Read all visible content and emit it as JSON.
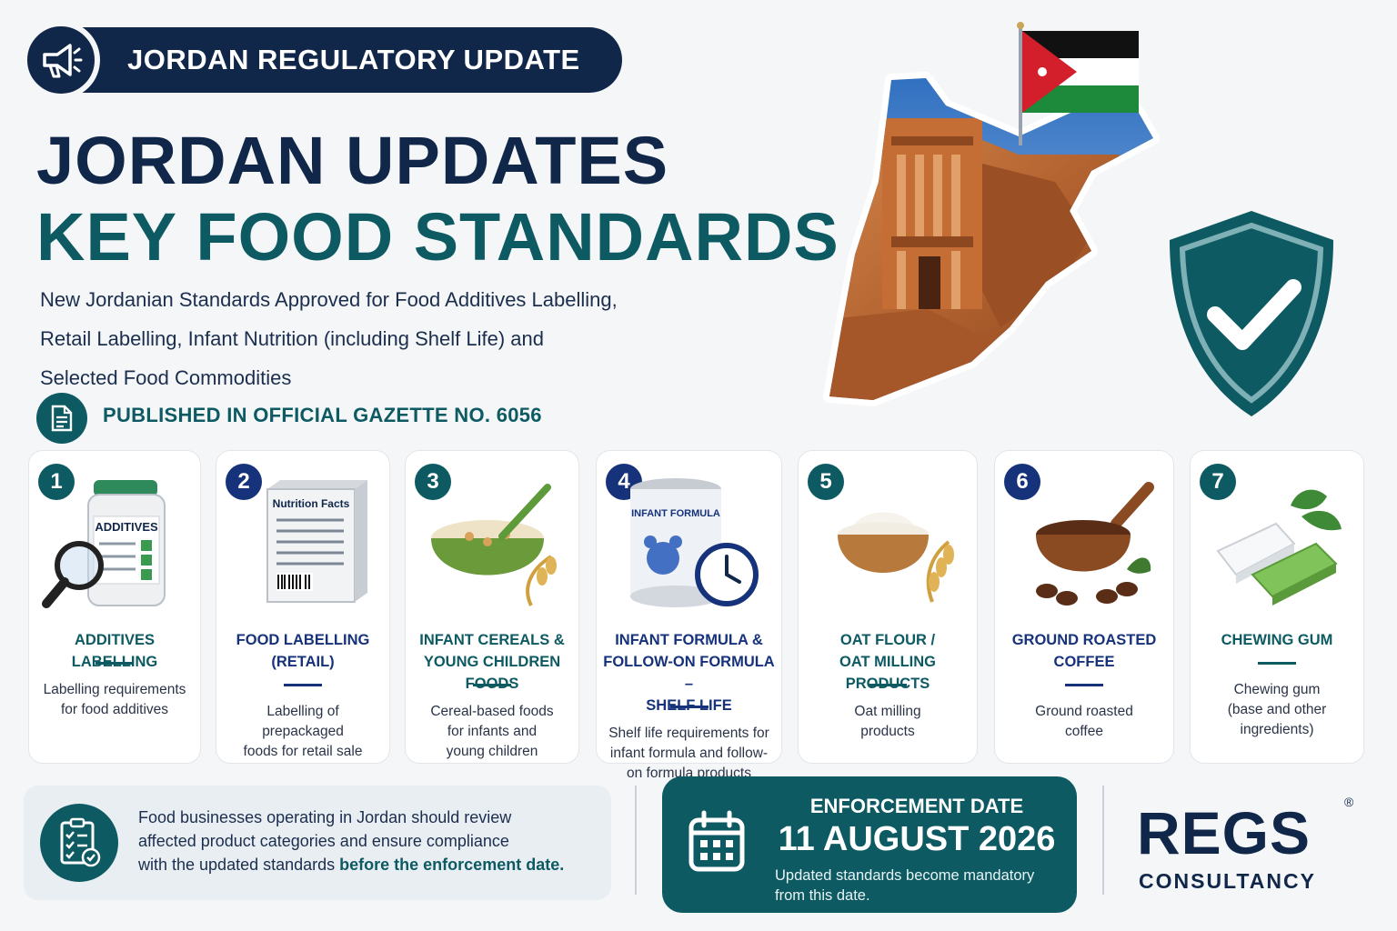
{
  "header": {
    "pill_text": "JORDAN REGULATORY UPDATE",
    "pill_icon": "megaphone-icon",
    "title_line1": "JORDAN UPDATES",
    "title_line2": "KEY FOOD STANDARDS",
    "subtitle_line1": "New Jordanian Standards Approved for Food Additives Labelling,",
    "subtitle_line2": "Retail Labelling, Infant Nutrition (including Shelf Life) and",
    "subtitle_line3": "Selected Food Commodities",
    "gazette_text": "PUBLISHED IN OFFICIAL GAZETTE NO. 6056",
    "gazette_icon": "document-icon"
  },
  "colors": {
    "navy": "#10274a",
    "teal": "#0d5a63",
    "blue": "#16327a",
    "background": "#f4f6f8"
  },
  "cards": [
    {
      "number": "1",
      "title_lines": [
        "ADDITIVES LABELLING"
      ],
      "desc_lines": [
        "Labelling requirements",
        "for food additives"
      ],
      "illustration": "additives-jar-magnifier-icon",
      "accent": "teal"
    },
    {
      "number": "2",
      "title_lines": [
        "FOOD LABELLING",
        "(RETAIL)"
      ],
      "desc_lines": [
        "Labelling of prepackaged",
        "foods for retail sale"
      ],
      "illustration": "nutrition-facts-box-icon",
      "illus_label": "Nutrition Facts",
      "accent": "navy"
    },
    {
      "number": "3",
      "title_lines": [
        "INFANT CEREALS &",
        "YOUNG CHILDREN FOODS"
      ],
      "desc_lines": [
        "Cereal-based foods",
        "for infants and",
        "young children"
      ],
      "illustration": "cereal-bowl-icon",
      "accent": "teal"
    },
    {
      "number": "4",
      "title_lines": [
        "INFANT FORMULA &",
        "FOLLOW-ON FORMULA –",
        "SHELF LIFE"
      ],
      "desc_lines": [
        "Shelf life requirements for",
        "infant formula and follow-",
        "on formula products"
      ],
      "illustration": "formula-can-clock-icon",
      "illus_label": "INFANT FORMULA",
      "accent": "navy"
    },
    {
      "number": "5",
      "title_lines": [
        "OAT FLOUR /",
        "OAT MILLING PRODUCTS"
      ],
      "desc_lines": [
        "Oat milling",
        "products"
      ],
      "illustration": "flour-bowl-icon",
      "accent": "teal"
    },
    {
      "number": "6",
      "title_lines": [
        "GROUND ROASTED",
        "COFFEE"
      ],
      "desc_lines": [
        "Ground roasted",
        "coffee"
      ],
      "illustration": "coffee-scoop-icon",
      "accent": "navy"
    },
    {
      "number": "7",
      "title_lines": [
        "CHEWING GUM"
      ],
      "desc_lines": [
        "Chewing gum",
        "(base and other",
        "ingredients)"
      ],
      "illustration": "chewing-gum-icon",
      "accent": "teal"
    }
  ],
  "additives_label": "ADDITIVES",
  "notice": {
    "line1": "Food businesses operating in Jordan should review",
    "line2": "affected product categories and ensure compliance",
    "line3_plain": "with the updated standards ",
    "line3_bold": "before the enforcement date.",
    "icon": "checklist-icon"
  },
  "enforcement": {
    "label": "ENFORCEMENT DATE",
    "date": "11 AUGUST 2026",
    "sub_line1": "Updated standards become mandatory",
    "sub_line2": "from this date.",
    "icon": "calendar-icon"
  },
  "logo": {
    "main": "REGS",
    "sub": "CONSULTANCY",
    "reg_mark": "®"
  },
  "hero_icons": [
    "jordan-flag-icon",
    "jordan-map-petra-icon",
    "shield-check-icon"
  ]
}
